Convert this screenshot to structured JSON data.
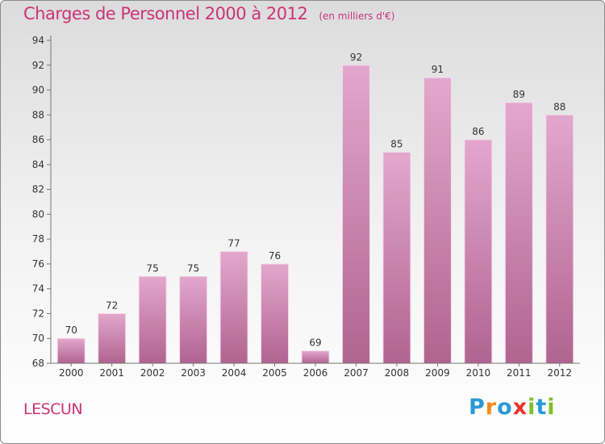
{
  "title": "Charges de Personnel 2000 à 2012",
  "unit_note": "(en milliers d'€)",
  "city": "LESCUN",
  "brand": {
    "letters": [
      {
        "char": "P",
        "color": "#2a9ad6"
      },
      {
        "char": "r",
        "color": "#f08a1c"
      },
      {
        "char": "o",
        "color": "#2a9ad6"
      },
      {
        "char": "x",
        "color": "#e8332a"
      },
      {
        "char": "i",
        "color": "#7fbf27"
      },
      {
        "char": "t",
        "color": "#2a9ad6"
      },
      {
        "char": "i",
        "color": "#7fbf27"
      }
    ]
  },
  "chart_data": {
    "type": "bar",
    "categories": [
      "2000",
      "2001",
      "2002",
      "2003",
      "2004",
      "2005",
      "2006",
      "2007",
      "2008",
      "2009",
      "2010",
      "2011",
      "2012"
    ],
    "values": [
      70,
      72,
      75,
      75,
      77,
      76,
      69,
      92,
      85,
      91,
      86,
      89,
      88
    ],
    "ylim": [
      68,
      94
    ],
    "yticks": [
      68,
      70,
      72,
      74,
      76,
      78,
      80,
      82,
      84,
      86,
      88,
      90,
      92,
      94
    ],
    "grid": false,
    "bar_color_top": "#e3a7cd",
    "bar_color_bottom": "#b0648f"
  }
}
